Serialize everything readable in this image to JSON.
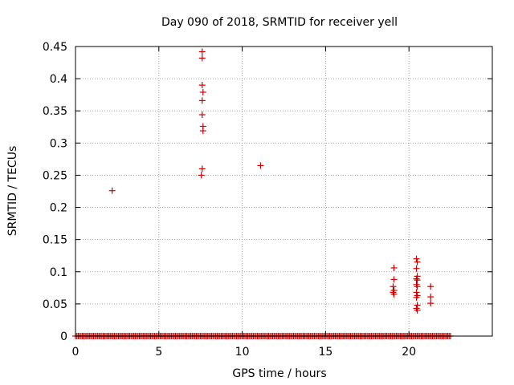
{
  "chart_data": {
    "type": "scatter",
    "title": "Day 090 of 2018, SRMTID for receiver yell",
    "xlabel": "GPS time / hours",
    "ylabel": "SRMTID / TECUs",
    "xlim": [
      0,
      25
    ],
    "ylim": [
      0,
      0.45
    ],
    "xticks": [
      0,
      5,
      10,
      15,
      20
    ],
    "yticks": [
      0,
      0.05,
      0.1,
      0.15,
      0.2,
      0.25,
      0.3,
      0.35,
      0.4,
      0.45
    ],
    "xtick_labels": [
      "0",
      "5",
      "10",
      "15",
      "20"
    ],
    "ytick_labels": [
      "0",
      "0.05",
      "0.1",
      "0.15",
      "0.2",
      "0.25",
      "0.3",
      "0.35",
      "0.4",
      "0.45"
    ],
    "grid": true,
    "marker": "+",
    "marker_color": "#cc0000",
    "zero_baseline": {
      "x_start": 0.0,
      "x_end": 22.5,
      "step": 0.0833,
      "y": 0
    },
    "points": [
      {
        "x": 2.2,
        "y": 0.226
      },
      {
        "x": 7.6,
        "y": 0.442
      },
      {
        "x": 7.6,
        "y": 0.432
      },
      {
        "x": 7.6,
        "y": 0.39
      },
      {
        "x": 7.65,
        "y": 0.379
      },
      {
        "x": 7.6,
        "y": 0.366
      },
      {
        "x": 7.6,
        "y": 0.344
      },
      {
        "x": 7.65,
        "y": 0.326
      },
      {
        "x": 7.65,
        "y": 0.319
      },
      {
        "x": 7.6,
        "y": 0.26
      },
      {
        "x": 7.55,
        "y": 0.25
      },
      {
        "x": 11.1,
        "y": 0.265
      },
      {
        "x": 19.1,
        "y": 0.106
      },
      {
        "x": 19.1,
        "y": 0.088
      },
      {
        "x": 19.05,
        "y": 0.077
      },
      {
        "x": 19.1,
        "y": 0.071
      },
      {
        "x": 19.05,
        "y": 0.068
      },
      {
        "x": 19.1,
        "y": 0.065
      },
      {
        "x": 20.45,
        "y": 0.12
      },
      {
        "x": 20.5,
        "y": 0.115
      },
      {
        "x": 20.45,
        "y": 0.105
      },
      {
        "x": 20.5,
        "y": 0.093
      },
      {
        "x": 20.45,
        "y": 0.089
      },
      {
        "x": 20.5,
        "y": 0.087
      },
      {
        "x": 20.45,
        "y": 0.08
      },
      {
        "x": 20.5,
        "y": 0.077
      },
      {
        "x": 20.45,
        "y": 0.068
      },
      {
        "x": 20.5,
        "y": 0.063
      },
      {
        "x": 20.45,
        "y": 0.06
      },
      {
        "x": 20.5,
        "y": 0.048
      },
      {
        "x": 20.45,
        "y": 0.043
      },
      {
        "x": 20.5,
        "y": 0.04
      },
      {
        "x": 21.3,
        "y": 0.077
      },
      {
        "x": 21.3,
        "y": 0.061
      },
      {
        "x": 21.3,
        "y": 0.051
      }
    ]
  }
}
